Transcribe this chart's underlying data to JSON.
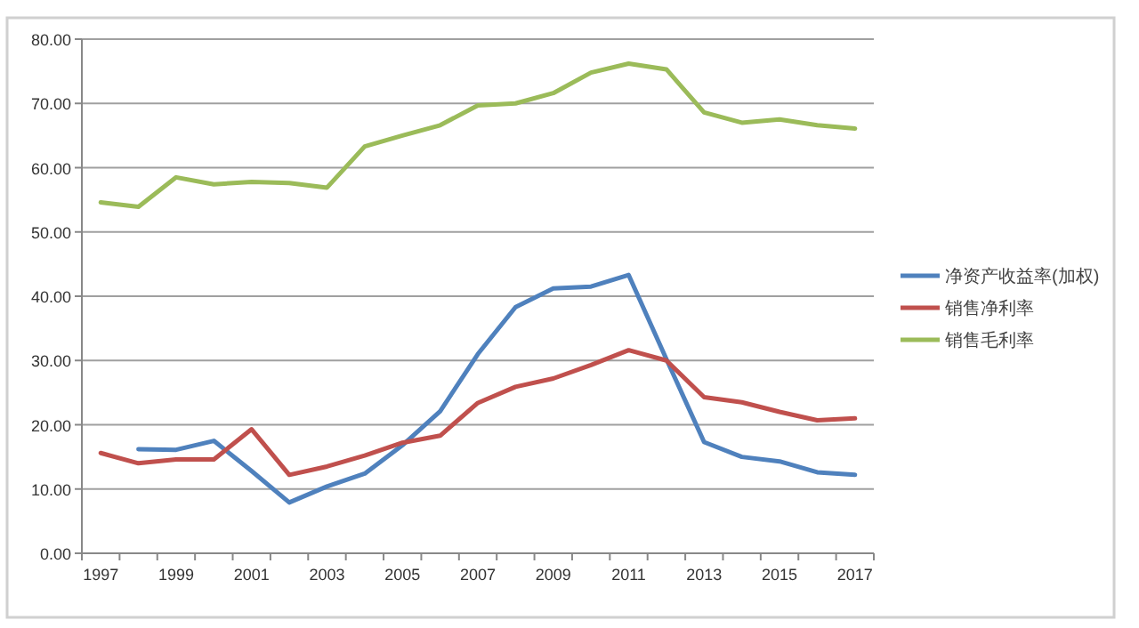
{
  "chart_data": {
    "type": "line",
    "categories": [
      "1997",
      null,
      "1999",
      null,
      "2001",
      null,
      "2003",
      null,
      "2005",
      null,
      "2007",
      null,
      "2009",
      null,
      "2011",
      null,
      "2013",
      null,
      "2015",
      null,
      "2017"
    ],
    "series": [
      {
        "name": "净资产收益率(加权)",
        "color": "#4f81bd",
        "values": [
          null,
          16.2,
          16.1,
          17.5,
          12.8,
          7.9,
          10.4,
          12.4,
          16.8,
          22.1,
          31.0,
          38.3,
          41.2,
          41.5,
          43.3,
          30.2,
          17.3,
          15.0,
          14.3,
          12.6,
          12.2
        ]
      },
      {
        "name": "销售净利率",
        "color": "#c0504d",
        "values": [
          15.6,
          14.0,
          14.6,
          14.6,
          19.3,
          12.2,
          13.5,
          15.2,
          17.2,
          18.3,
          23.4,
          25.9,
          27.2,
          29.3,
          31.6,
          30.0,
          24.3,
          23.5,
          22.0,
          20.7,
          21.0
        ]
      },
      {
        "name": "销售毛利率",
        "color": "#9bbb59",
        "values": [
          54.6,
          53.9,
          58.5,
          57.4,
          57.8,
          57.6,
          56.9,
          63.3,
          65.0,
          66.6,
          69.7,
          70.0,
          71.6,
          74.8,
          76.2,
          75.3,
          68.6,
          67.0,
          67.5,
          66.6,
          66.1
        ]
      }
    ],
    "ylim": [
      0,
      80
    ],
    "yticks": [
      {
        "value": 0,
        "label": "0.00"
      },
      {
        "value": 10,
        "label": "10.00"
      },
      {
        "value": 20,
        "label": "20.00"
      },
      {
        "value": 30,
        "label": "30.00"
      },
      {
        "value": 40,
        "label": "40.00"
      },
      {
        "value": 50,
        "label": "50.00"
      },
      {
        "value": 60,
        "label": "60.00"
      },
      {
        "value": 70,
        "label": "70.00"
      },
      {
        "value": 80,
        "label": "80.00"
      }
    ],
    "grid": "y",
    "legend": "right",
    "marker": "none",
    "line_style": "solid"
  }
}
